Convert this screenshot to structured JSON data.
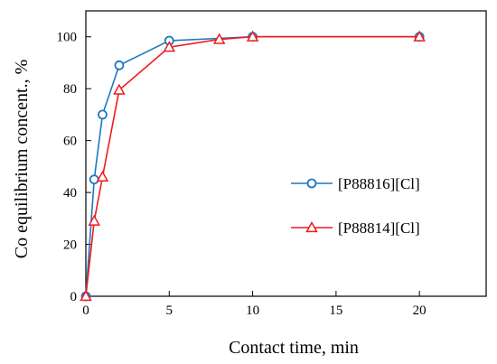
{
  "chart_data": {
    "type": "line",
    "xlabel": "Contact time, min",
    "ylabel": "Co  equilibrium concent., %",
    "xlim": [
      0,
      24
    ],
    "ylim": [
      0,
      110
    ],
    "xticks": [
      0,
      5,
      10,
      15,
      20
    ],
    "yticks": [
      0,
      20,
      40,
      60,
      80,
      100
    ],
    "grid": false,
    "legend_position": "right",
    "series": [
      {
        "name": "[P88816][Cl]",
        "color": "#1f77c0",
        "marker": "circle",
        "x": [
          0,
          0.5,
          1,
          2,
          5,
          10,
          20
        ],
        "y": [
          0,
          45,
          70,
          89,
          98.5,
          100,
          100
        ]
      },
      {
        "name": "[P88814][Cl]",
        "color": "#ee1c1c",
        "marker": "triangle",
        "x": [
          0,
          0.5,
          1,
          2,
          5,
          8,
          10,
          20
        ],
        "y": [
          0,
          29,
          46,
          79.5,
          96,
          99,
          100,
          100
        ]
      }
    ]
  }
}
